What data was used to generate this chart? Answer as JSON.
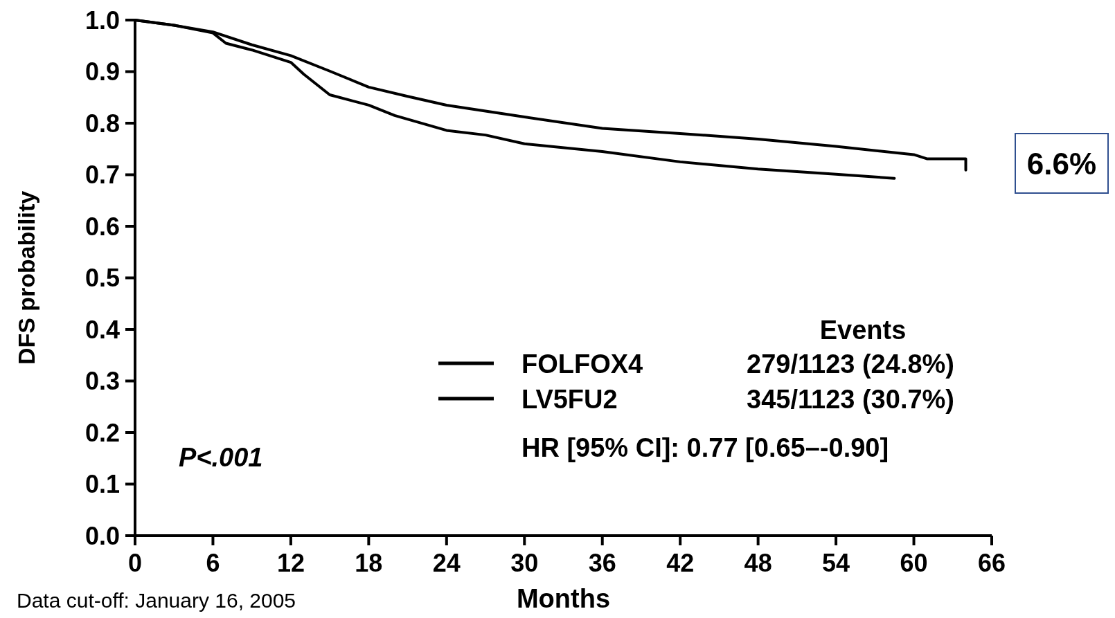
{
  "chart_data": {
    "type": "line",
    "xlabel": "Months",
    "ylabel": "DFS probability",
    "xlim": [
      0,
      66
    ],
    "xticks": [
      0,
      6,
      12,
      18,
      24,
      30,
      36,
      42,
      48,
      54,
      60,
      66
    ],
    "ylim": [
      0,
      1
    ],
    "yticks": [
      {
        "value": 0,
        "label": "0.0"
      },
      0.1,
      0.2,
      0.3,
      0.4,
      0.5,
      0.6,
      0.7,
      0.8,
      0.9,
      {
        "value": 1,
        "label": "1.0"
      }
    ],
    "grid": false,
    "legend": "bottom right",
    "line_style": "solid",
    "marker": "none",
    "series": [
      {
        "name": "FOLFOX4",
        "color": "#000000",
        "x": [
          0,
          3,
          6,
          9,
          12,
          15,
          18,
          21,
          24,
          30,
          36,
          42,
          48,
          54,
          60,
          61,
          64,
          64
        ],
        "values": [
          1.0,
          0.99,
          0.977,
          0.952,
          0.931,
          0.901,
          0.87,
          0.852,
          0.835,
          0.812,
          0.79,
          0.78,
          0.769,
          0.755,
          0.739,
          0.731,
          0.731,
          0.709
        ]
      },
      {
        "name": "LV5FU2",
        "color": "#000000",
        "x": [
          0,
          3,
          6,
          7,
          9,
          12,
          13,
          15,
          18,
          20,
          24,
          27,
          30,
          36,
          42,
          48,
          54,
          58.5
        ],
        "values": [
          1.0,
          0.99,
          0.975,
          0.955,
          0.942,
          0.918,
          0.895,
          0.855,
          0.835,
          0.815,
          0.786,
          0.777,
          0.76,
          0.745,
          0.725,
          0.711,
          0.701,
          0.693
        ]
      }
    ],
    "annotations": [
      "Events",
      "279/1123 (24.8%)",
      "345/1123 (30.7%)",
      "HR [95% CI]: 0.77 [0.65–-0.90]",
      "P<.001",
      "6.6%",
      "Data cut-off: January 16, 2005"
    ]
  }
}
